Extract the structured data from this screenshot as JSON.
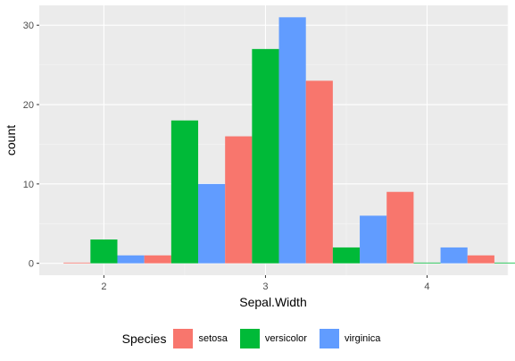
{
  "chart_data": {
    "type": "bar",
    "title": "",
    "xlabel": "Sepal.Width",
    "ylabel": "count",
    "x_ticks": [
      "2",
      "3",
      "4"
    ],
    "x_tick_values": [
      2,
      3,
      4
    ],
    "y_ticks": [
      "0",
      "10",
      "20",
      "30"
    ],
    "y_tick_values": [
      0,
      10,
      20,
      30
    ],
    "xlim": [
      1.6,
      4.5
    ],
    "ylim": [
      -1.5,
      32.5
    ],
    "bin_centers": [
      2.0,
      2.5,
      3.0,
      3.5,
      4.0,
      4.5
    ],
    "bin_width": 0.5,
    "grid": true,
    "legend_position": "bottom",
    "legend_title": "Species",
    "series": [
      {
        "name": "setosa",
        "color": "#F8766D",
        "values": [
          0,
          1,
          16,
          23,
          9,
          1
        ]
      },
      {
        "name": "versicolor",
        "color": "#00BA38",
        "values": [
          3,
          18,
          27,
          2,
          0,
          0
        ]
      },
      {
        "name": "virginica",
        "color": "#619CFF",
        "values": [
          1,
          10,
          31,
          6,
          2,
          0
        ]
      }
    ]
  }
}
